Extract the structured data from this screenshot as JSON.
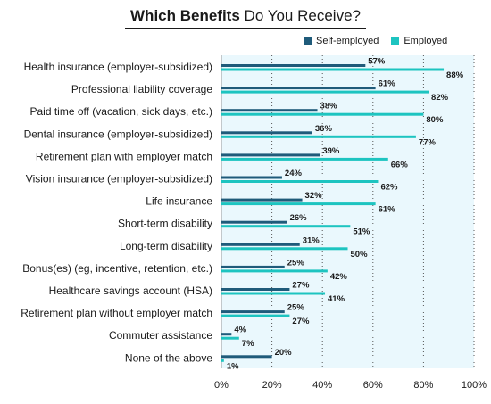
{
  "title": {
    "bold": "Which Benefits",
    "normal": "Do You Receive?"
  },
  "legend": [
    {
      "label": "Self-employed",
      "color": "#1f5b7a"
    },
    {
      "label": "Employed",
      "color": "#1dc4c0"
    }
  ],
  "colors": {
    "plot_bg": "#eaf8fd",
    "grid": "#555555"
  },
  "chart_data": {
    "type": "bar",
    "orientation": "horizontal",
    "title": "Which Benefits Do You Receive?",
    "categories": [
      "Health insurance (employer-subsidized)",
      "Professional liability coverage",
      "Paid time off (vacation, sick days, etc.)",
      "Dental insurance (employer-subsidized)",
      "Retirement plan with employer match",
      "Vision insurance (employer-subsidized)",
      "Life insurance",
      "Short-term disability",
      "Long-term disability",
      "Bonus(es) (eg, incentive, retention, etc.)",
      "Healthcare savings account (HSA)",
      "Retirement plan without employer match",
      "Commuter assistance",
      "None of the above"
    ],
    "series": [
      {
        "name": "Self-employed",
        "values": [
          57,
          61,
          38,
          36,
          39,
          24,
          32,
          26,
          31,
          25,
          27,
          25,
          4,
          20
        ]
      },
      {
        "name": "Employed",
        "values": [
          88,
          82,
          80,
          77,
          66,
          62,
          61,
          51,
          50,
          42,
          41,
          27,
          7,
          1
        ]
      }
    ],
    "xlim": [
      0,
      100
    ],
    "xticks": [
      "0%",
      "20%",
      "40%",
      "60%",
      "80%",
      "100%"
    ],
    "value_suffix": "%",
    "grid": "vertical dotted",
    "legend_position": "top-right"
  }
}
